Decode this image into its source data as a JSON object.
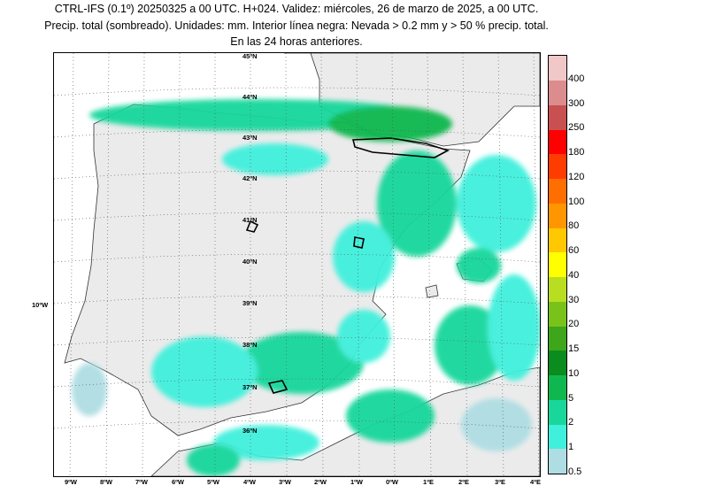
{
  "header": {
    "line1": "CTRL-IFS (0.1º) 20250325 a 00 UTC. H+024. Validez: miércoles, 26 de marzo de 2025, a 00 UTC.",
    "line2": "Precip. total (sombreado). Unidades: mm. Interior línea negra: Nevada > 0.2 mm y > 50 % precip. total.",
    "line3": "En las 24 horas anteriores."
  },
  "map": {
    "lat_labels": [
      "45ºN",
      "44ºN",
      "43ºN",
      "42ºN",
      "41ºN",
      "40ºN",
      "39ºN",
      "38ºN",
      "37ºN",
      "36ºN"
    ],
    "lon_labels": [
      "9ºW",
      "8ºW",
      "7ºW",
      "6ºW",
      "5ºW",
      "4ºW",
      "3ºW",
      "2ºW",
      "1ºW",
      "0ºW",
      "1ºE",
      "2ºE",
      "3ºE",
      "4ºE"
    ],
    "side_label": "10ºW",
    "colors": {
      "land": "#ebebeb",
      "border": "#333333",
      "snow_contour": "#000000"
    }
  },
  "colorbar": {
    "levels": [
      "0.5",
      "1",
      "2",
      "5",
      "10",
      "15",
      "20",
      "30",
      "40",
      "60",
      "80",
      "100",
      "120",
      "180",
      "250",
      "300",
      "400"
    ],
    "colors": [
      "#aedde3",
      "#3ff0dc",
      "#19d79b",
      "#0fb84e",
      "#0a8c1e",
      "#3da61a",
      "#79c21a",
      "#b9de21",
      "#ffff00",
      "#ffc800",
      "#ff9600",
      "#ff6e00",
      "#ff3c00",
      "#ff0000",
      "#c85050",
      "#dc8c8c",
      "#f0c8c8"
    ]
  }
}
